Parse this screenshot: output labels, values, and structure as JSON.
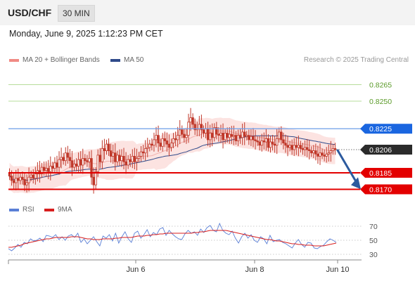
{
  "header": {
    "pair": "USD/CHF",
    "timeframe": "30 MIN"
  },
  "datetime": "Monday, June 9, 2025 1:12:23 PM CET",
  "legend": {
    "items": [
      {
        "label": "MA 20 + Bollinger Bands",
        "color": "#f08a84"
      },
      {
        "label": "MA 50",
        "color": "#2f4a8a"
      }
    ],
    "credit": "Research © 2025 Trading Central"
  },
  "rsi_legend": {
    "items": [
      {
        "label": "RSI",
        "color": "#5a7fd6"
      },
      {
        "label": "9MA",
        "color": "#d81e1e"
      }
    ]
  },
  "chart_data": [
    {
      "type": "candlestick",
      "ylim": [
        0.8162,
        0.828
      ],
      "levels": [
        {
          "value": 0.8265,
          "label": "0.8265",
          "kind": "target",
          "color": "#5a9a28"
        },
        {
          "value": 0.825,
          "label": "0.8250",
          "kind": "target",
          "color": "#5a9a28"
        },
        {
          "value": 0.8225,
          "label": "0.8225",
          "kind": "resistance",
          "color": "#1a66e0"
        },
        {
          "value": 0.8206,
          "label": "0.8206",
          "kind": "last",
          "color": "#2b2b2b"
        },
        {
          "value": 0.8185,
          "label": "0.8185",
          "kind": "support",
          "color": "#e30000"
        },
        {
          "value": 0.817,
          "label": "0.8170",
          "kind": "support",
          "color": "#e30000"
        }
      ],
      "x_ticks": [
        "Jun 6",
        "Jun 8",
        "Jun 10"
      ],
      "close": [
        0.8182,
        0.8178,
        0.8176,
        0.818,
        0.8178,
        0.8181,
        0.8179,
        0.8174,
        0.8176,
        0.8181,
        0.8183,
        0.818,
        0.8184,
        0.8187,
        0.8184,
        0.819,
        0.8187,
        0.8189,
        0.8186,
        0.8191,
        0.8189,
        0.8194,
        0.819,
        0.8197,
        0.8199,
        0.8196,
        0.8203,
        0.8199,
        0.8196,
        0.819,
        0.8193,
        0.8191,
        0.8197,
        0.8192,
        0.8198,
        0.8196,
        0.8195,
        0.8198,
        0.8181,
        0.8174,
        0.8186,
        0.8201,
        0.8195,
        0.8207,
        0.8205,
        0.8211,
        0.8205,
        0.82,
        0.8203,
        0.8195,
        0.8201,
        0.8196,
        0.82,
        0.8195,
        0.8192,
        0.8197,
        0.8195,
        0.82,
        0.8195,
        0.8198,
        0.82,
        0.8204,
        0.8203,
        0.8207,
        0.8208,
        0.8211,
        0.821,
        0.8215,
        0.8219,
        0.8212,
        0.8209,
        0.8216,
        0.8214,
        0.8211,
        0.8208,
        0.8212,
        0.8216,
        0.8215,
        0.8219,
        0.8224,
        0.822,
        0.8217,
        0.8219,
        0.8231,
        0.8235,
        0.8229,
        0.8224,
        0.8225,
        0.8229,
        0.8224,
        0.8221,
        0.8225,
        0.8215,
        0.8221,
        0.8217,
        0.8226,
        0.822,
        0.8219,
        0.8221,
        0.8215,
        0.8221,
        0.8217,
        0.822,
        0.8218,
        0.8219,
        0.8214,
        0.8219,
        0.8217,
        0.8222,
        0.8218,
        0.8219,
        0.8215,
        0.8218,
        0.8215,
        0.8214,
        0.8213,
        0.821,
        0.8214,
        0.8213,
        0.8216,
        0.8208,
        0.8213,
        0.8211,
        0.821,
        0.8216,
        0.8222,
        0.8215,
        0.8212,
        0.821,
        0.8208,
        0.821,
        0.8206,
        0.821,
        0.8208,
        0.821,
        0.8207,
        0.8206,
        0.8208,
        0.8206,
        0.8205,
        0.8203,
        0.8205,
        0.8202,
        0.82,
        0.8203,
        0.8201,
        0.82,
        0.8202,
        0.8203,
        0.8205,
        0.8207,
        0.8206
      ],
      "forecast_arrow": {
        "from": 0.8206,
        "to": 0.8172
      }
    },
    {
      "type": "line",
      "ylim": [
        20,
        80
      ],
      "y_ticks": [
        70,
        50,
        30
      ],
      "series": [
        {
          "name": "RSI",
          "color": "#5a7fd6",
          "values": [
            38,
            35,
            39,
            44,
            40,
            47,
            45,
            52,
            49,
            50,
            53,
            48,
            57,
            56,
            54,
            58,
            51,
            55,
            50,
            56,
            58,
            54,
            60,
            47,
            52,
            45,
            50,
            55,
            48,
            42,
            56,
            53,
            58,
            49,
            60,
            46,
            55,
            62,
            52,
            47,
            60,
            63,
            53,
            58,
            65,
            55,
            61,
            58,
            66,
            68,
            57,
            64,
            59,
            55,
            52,
            51,
            59,
            64,
            60,
            62,
            57,
            66,
            61,
            68,
            71,
            64,
            62,
            74,
            64,
            60,
            58,
            63,
            53,
            46,
            55,
            60,
            53,
            58,
            50,
            47,
            55,
            52,
            45,
            57,
            48,
            50,
            51,
            47,
            45,
            42,
            39,
            46,
            51,
            44,
            40,
            47,
            46,
            39,
            38,
            41,
            43,
            48,
            52,
            50,
            47
          ]
        },
        {
          "name": "9MA",
          "color": "#d81e1e",
          "values": [
            40,
            40,
            41,
            42,
            43,
            45,
            46,
            47,
            48,
            49,
            50,
            51,
            52,
            52,
            53,
            54,
            54,
            54,
            54,
            54,
            55,
            55,
            55,
            54,
            53,
            52,
            52,
            51,
            51,
            51,
            52,
            52,
            52,
            52,
            53,
            53,
            54,
            54,
            54,
            54,
            55,
            56,
            56,
            56,
            57,
            57,
            58,
            58,
            59,
            59,
            60,
            60,
            60,
            60,
            60,
            60,
            60,
            60,
            60,
            61,
            61,
            62,
            62,
            63,
            64,
            64,
            64,
            64,
            64,
            64,
            63,
            62,
            61,
            60,
            59,
            58,
            57,
            56,
            55,
            54,
            53,
            52,
            51,
            51,
            50,
            49,
            49,
            48,
            47,
            46,
            45,
            45,
            44,
            44,
            43,
            43,
            43,
            42,
            42,
            42,
            42,
            43,
            44,
            45,
            46
          ]
        }
      ]
    }
  ]
}
